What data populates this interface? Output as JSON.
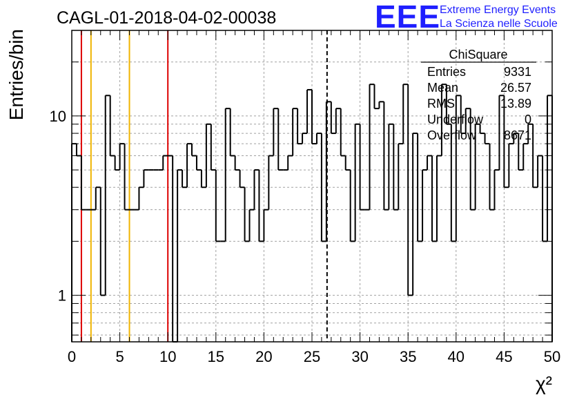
{
  "header": {
    "run_title": "CAGL-01-2018-04-02-00038",
    "logo_text": "EEE",
    "org_line1": "Extreme Energy Events",
    "org_line2": "La Scienza nelle Scuole",
    "brand_color": "#1f1fff"
  },
  "stats": {
    "title": "ChiSquare",
    "rows": [
      {
        "label": "Entries",
        "value": "9331"
      },
      {
        "label": "Mean",
        "value": "26.57"
      },
      {
        "label": "RMS",
        "value": "13.89"
      },
      {
        "label": "Underflow",
        "value": "0"
      },
      {
        "label": "Overflow",
        "value": "8671"
      }
    ]
  },
  "chart_data": {
    "type": "histogram",
    "title": "CAGL-01-2018-04-02-00038",
    "xlabel": "χ²",
    "ylabel": "Entries/bin",
    "xlim": [
      0,
      50
    ],
    "ylim": [
      0.55,
      30
    ],
    "yscale": "log",
    "grid": true,
    "x_ticks": [
      0,
      5,
      10,
      15,
      20,
      25,
      30,
      35,
      40,
      45,
      50
    ],
    "y_ticks": [
      1,
      10
    ],
    "bin_width": 0.5,
    "values": [
      7,
      6,
      3,
      3,
      3,
      4,
      1,
      13,
      6,
      5,
      7,
      3,
      3,
      3,
      4,
      5,
      5,
      5,
      5,
      6,
      6,
      0,
      5,
      4,
      7,
      6,
      5,
      4,
      9,
      5,
      2,
      2,
      11,
      6,
      5,
      4,
      2,
      3,
      5,
      2,
      3,
      6,
      11,
      5,
      5,
      6,
      11,
      7,
      8,
      14,
      7,
      8,
      2,
      12,
      8,
      11,
      6,
      5,
      2,
      9,
      3,
      3,
      15,
      11,
      12,
      3,
      9,
      3,
      7,
      15,
      1,
      8,
      2,
      5,
      6,
      2,
      6,
      15,
      9,
      2,
      13,
      8,
      11,
      3,
      9,
      8,
      7,
      3,
      5,
      13,
      4,
      7,
      8,
      5,
      7,
      9,
      4,
      6,
      2,
      13
    ],
    "vertical_lines": [
      {
        "x": 1,
        "color": "#dd0000",
        "style": "solid"
      },
      {
        "x": 2,
        "color": "#f0b400",
        "style": "solid"
      },
      {
        "x": 6,
        "color": "#f0b400",
        "style": "solid"
      },
      {
        "x": 10,
        "color": "#dd0000",
        "style": "solid"
      },
      {
        "x": 26.57,
        "color": "#000000",
        "style": "dashed"
      }
    ]
  }
}
